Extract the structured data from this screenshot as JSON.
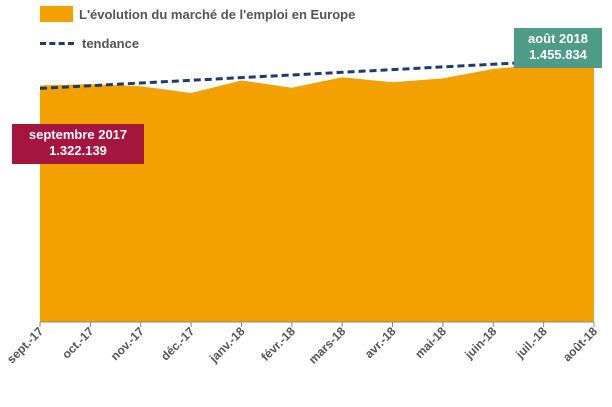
{
  "legend": {
    "area_label": "L'évolution du marché de l'emploi en Europe",
    "trend_label": "tendance"
  },
  "callouts": {
    "start": {
      "label": "septembre 2017",
      "value": "1.322.139"
    },
    "end": {
      "label": "août 2018",
      "value": "1.455.834"
    }
  },
  "colors": {
    "area": "#F2A100",
    "trend": "#1E3A6E",
    "start_callout": "#A5153D",
    "end_callout": "#4E9B86",
    "axis": "#888888"
  },
  "chart_data": {
    "type": "area",
    "title": "L'évolution du marché de l'emploi en Europe",
    "categories": [
      "sept.-17",
      "oct.-17",
      "nov.-17",
      "déc.-17",
      "janv.-18",
      "févr.-18",
      "mars-18",
      "avr.-18",
      "mai-18",
      "juin-18",
      "juil.-18",
      "août-18"
    ],
    "series": [
      {
        "name": "L'évolution du marché de l'emploi en Europe",
        "type": "area",
        "values": [
          1322139,
          1330000,
          1318000,
          1280000,
          1350000,
          1310000,
          1368000,
          1340000,
          1362000,
          1415000,
          1440000,
          1455834
        ]
      },
      {
        "name": "tendance",
        "type": "line",
        "style": "dashed",
        "values": [
          1306000,
          1321000,
          1336000,
          1351000,
          1366000,
          1381000,
          1396000,
          1411000,
          1426000,
          1441000,
          1455000,
          1470000
        ]
      }
    ],
    "xlabel": "",
    "ylabel": "",
    "ylim": [
      0,
      1800000
    ],
    "grid": false,
    "legend_position": "top-left"
  }
}
